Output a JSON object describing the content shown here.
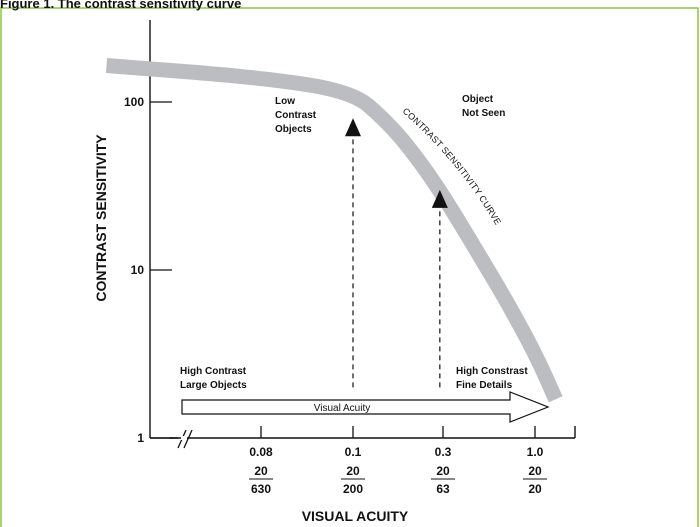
{
  "page": {
    "caption_fragment": "Figure 1. The contrast sensitivity curve",
    "frame_color": "#8dc63f",
    "curve_color": "#bcbdc0",
    "ink_color": "#111111"
  },
  "chart_data": {
    "type": "line",
    "title": "",
    "xlabel": "VISUAL ACUITY",
    "ylabel": "CONTRAST SENSITIVITY",
    "y_scale": "log",
    "ylim": [
      1,
      300
    ],
    "y_ticks": [
      {
        "value": 1,
        "label": "1"
      },
      {
        "value": 10,
        "label": "10"
      },
      {
        "value": 100,
        "label": "100"
      }
    ],
    "x_ticks": [
      {
        "label": "0.08",
        "snellen_num": "20",
        "snellen_den": "630"
      },
      {
        "label": "0.1",
        "snellen_num": "20",
        "snellen_den": "200"
      },
      {
        "label": "0.3",
        "snellen_num": "20",
        "snellen_den": "63"
      },
      {
        "label": "1.0",
        "snellen_num": "20",
        "snellen_den": "20"
      }
    ],
    "x_axis_break": true,
    "series": [
      {
        "name": "CONTRAST SENSITIVITY CURVE",
        "x": [
          0.055,
          0.08,
          0.1,
          0.15,
          0.2,
          0.3,
          0.5,
          0.7,
          1.0,
          1.3
        ],
        "y": [
          165,
          140,
          115,
          78,
          55,
          30,
          12,
          6.5,
          3.2,
          1.7
        ]
      }
    ],
    "arrows": [
      {
        "x": 0.1,
        "y_from": 2,
        "y_to": 80
      },
      {
        "x": 0.3,
        "y_from": 2,
        "y_to": 30
      }
    ],
    "acuity_arrow_label": "Visual Acuity",
    "annotations": {
      "low_contrast": [
        "Low",
        "Contrast",
        "Objects"
      ],
      "not_seen": [
        "Object",
        "Not Seen"
      ],
      "high_large": [
        "High Contrast",
        "Large Objects"
      ],
      "high_fine": [
        "High Constrast",
        "Fine Details"
      ]
    }
  }
}
